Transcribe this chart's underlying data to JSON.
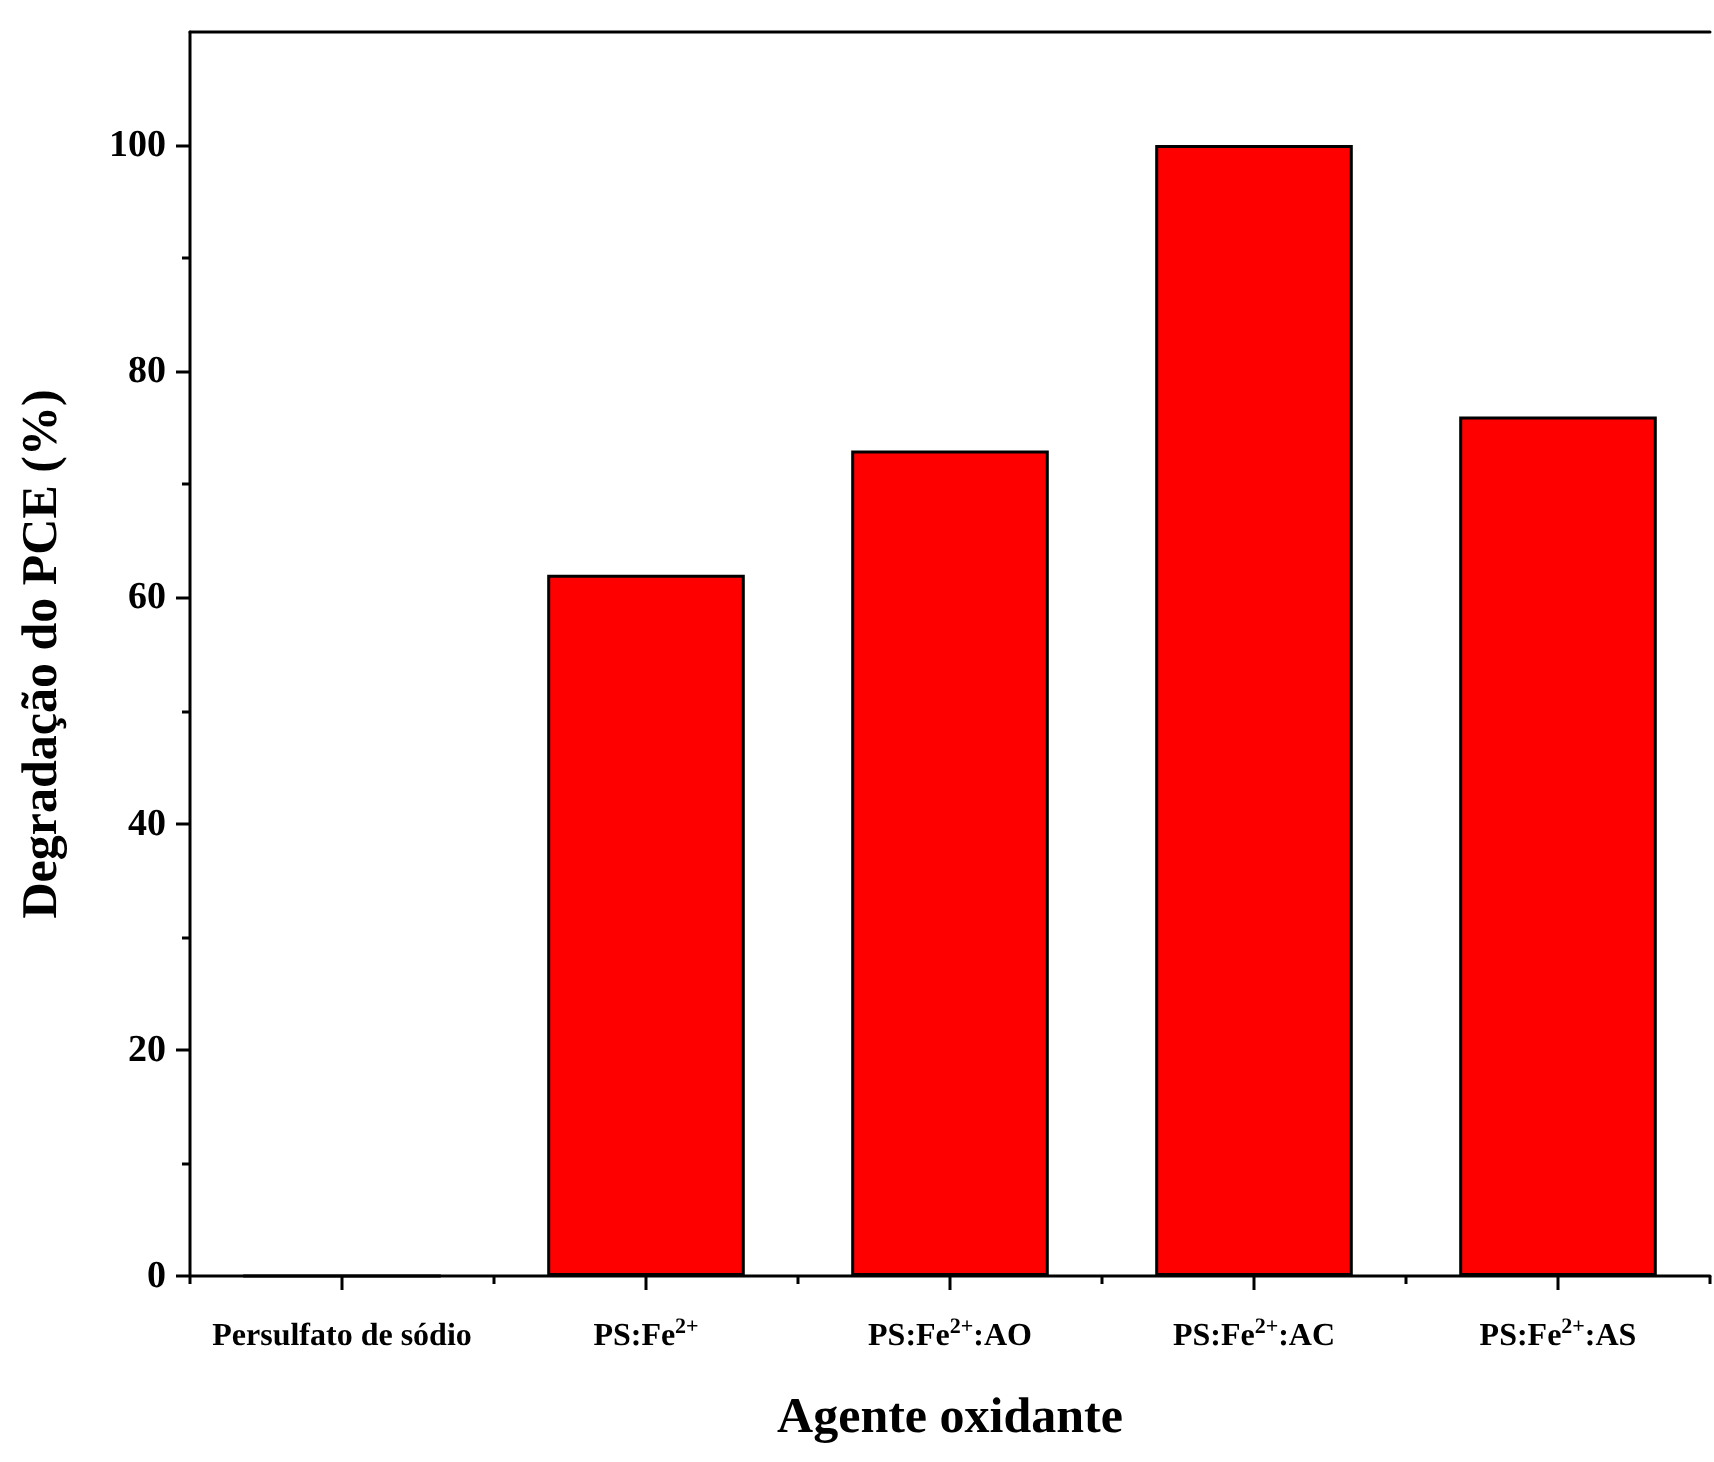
{
  "chart_data": {
    "type": "bar",
    "xlabel": "Agente oxidante",
    "ylabel": "Degradação do PCE (%)",
    "categories": [
      "Persulfato de sódio",
      "PS:Fe$^{2+}$",
      "PS:Fe$^{2+}$:AO",
      "PS:Fe$^{2+}$:AC",
      "PS:Fe$^{2+}$:AS"
    ],
    "values": [
      0,
      62,
      73,
      100,
      76
    ],
    "color": "#ff0000",
    "ylim": [
      0,
      110
    ],
    "yticks": [
      0,
      20,
      40,
      60,
      80,
      100
    ]
  }
}
